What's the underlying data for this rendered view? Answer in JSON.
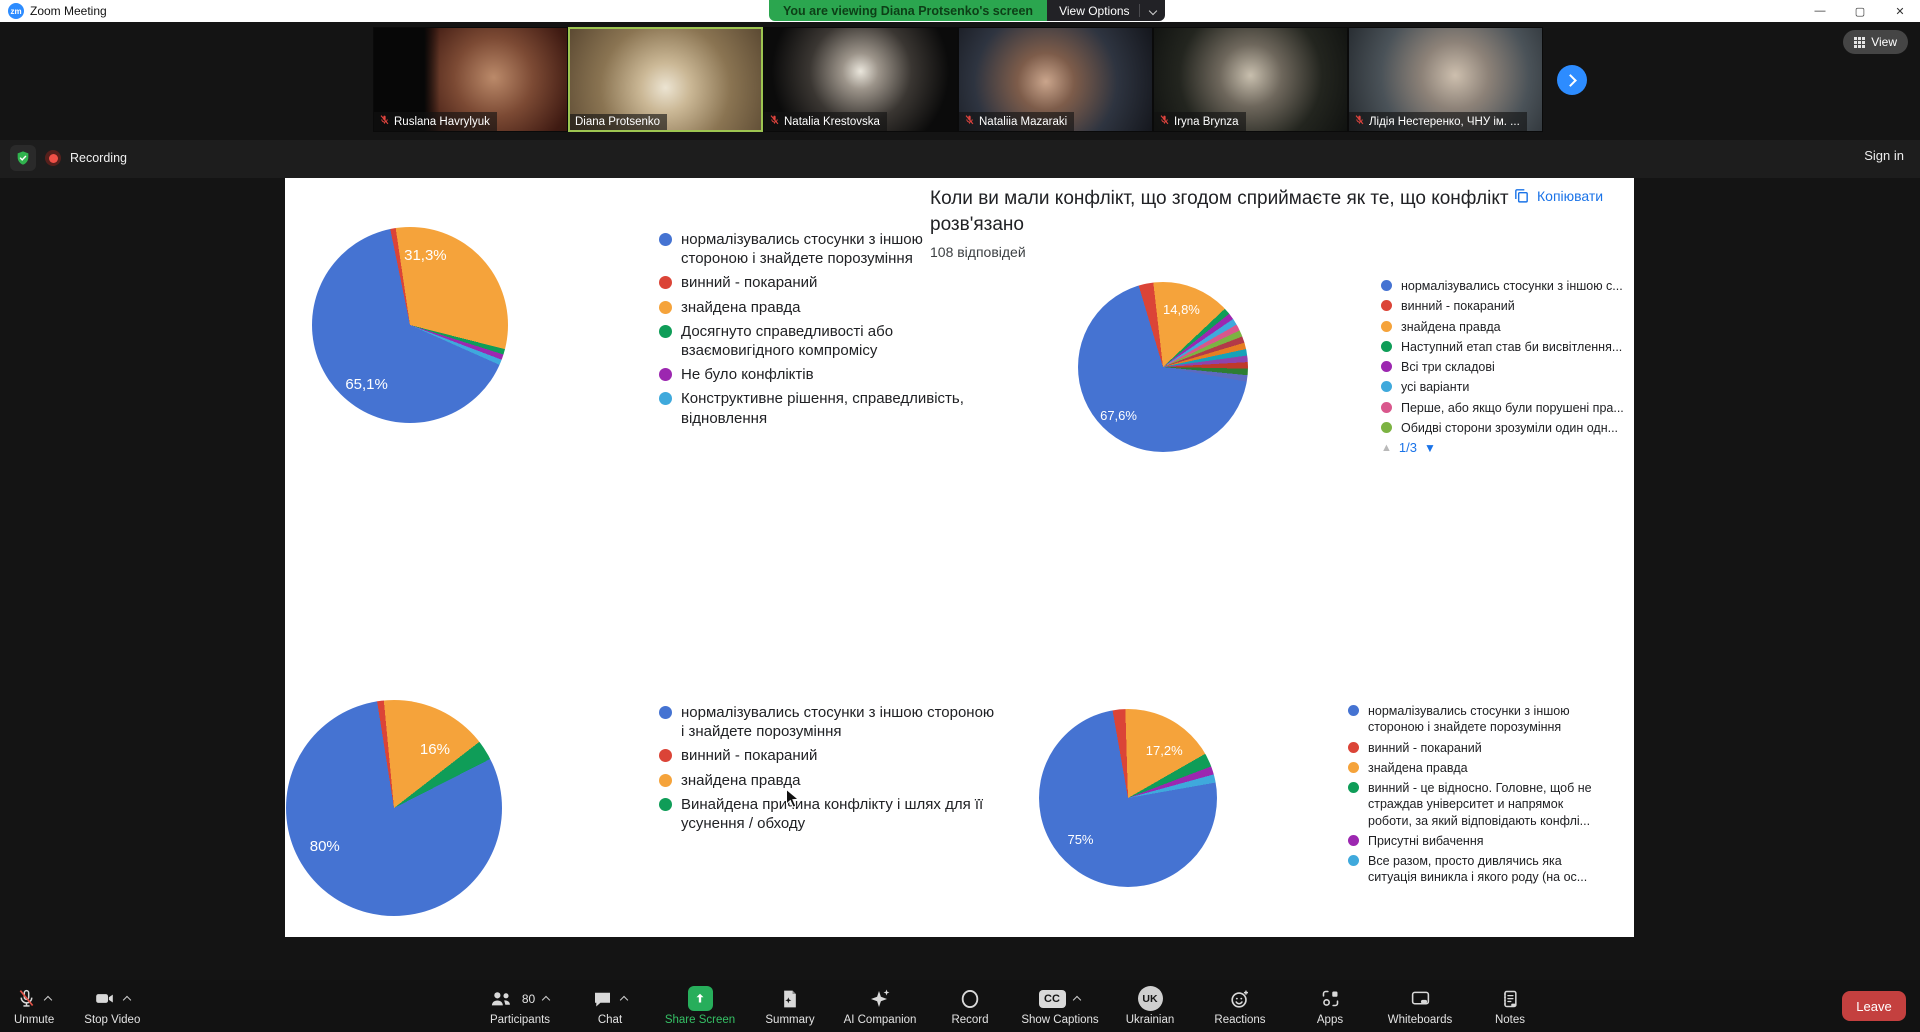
{
  "window": {
    "logo": "zm",
    "title": "Zoom Meeting"
  },
  "icons": {
    "minimize": "—",
    "maximize": "▢",
    "close": "✕",
    "page_up": "▲",
    "page_down": "▼"
  },
  "banner": {
    "viewing_text": "You are viewing Diana Protsenko's screen",
    "view_options_label": "View Options"
  },
  "meeting": {
    "view_button": "View",
    "recording_label": "Recording",
    "sign_in": "Sign in",
    "participants": [
      {
        "name": "Ruslana Havrylyuk",
        "muted": true,
        "active": false
      },
      {
        "name": "Diana Protsenko",
        "muted": false,
        "active": true
      },
      {
        "name": "Natalia Krestovska",
        "muted": true,
        "active": false
      },
      {
        "name": "Nataliia Mazaraki",
        "muted": true,
        "active": false
      },
      {
        "name": "Iryna Brynza",
        "muted": true,
        "active": false
      },
      {
        "name": "Лідія Нестеренко, ЧНУ ім. ...",
        "muted": true,
        "active": false
      }
    ]
  },
  "form": {
    "question": "Коли ви мали конфлікт, що згодом сприймаєте як те, що конфлікт розв'язано",
    "responses_count": "108 відповідей",
    "copy_label": "Копіювати",
    "pagination_current": "1/3"
  },
  "colors": {
    "blue": "#4573D2",
    "red": "#DB4437",
    "orange": "#F5A33B",
    "green": "#0F9D58",
    "purple": "#9C27B0",
    "cyan": "#3FA9DC",
    "pink": "#D9578C",
    "light_green": "#7CB342",
    "link_blue": "#1a73e8",
    "banner_green": "#2BA64F",
    "share_green": "#27AE5B",
    "leave_red": "#C4403F"
  },
  "chart_data": [
    {
      "type": "pie",
      "position": "top-left",
      "title": "Коли ви мали конфлікт, що згодом сприймаєте як те, що конфлікт розв'язано",
      "responses": 108,
      "rotate_deg": 114,
      "percent_labels": [
        {
          "text": "65,1%"
        },
        {
          "text": "31,3%"
        }
      ],
      "slices": [
        {
          "label": "нормалізувались стосунки з іншою стороною і знайдете порозуміння",
          "color": "#4573D2",
          "value": 65.1
        },
        {
          "label": "винний - покараний",
          "color": "#DB4437",
          "value": 0.9
        },
        {
          "label": "знайдена правда",
          "color": "#F5A33B",
          "value": 31.3
        },
        {
          "label": "Досягнуто справедливості або взаємовигідного компромісу",
          "color": "#0F9D58",
          "value": 0.9
        },
        {
          "label": "Не було конфліктів",
          "color": "#9C27B0",
          "value": 0.9
        },
        {
          "label": "Конструктивне рішення, справедливість, відновлення",
          "color": "#3FA9DC",
          "value": 0.9
        }
      ],
      "legend": [
        {
          "color": "#4573D2",
          "label": "нормалізувались стосунки з іншою стороною і знайдете порозуміння"
        },
        {
          "color": "#DB4437",
          "label": "винний - покараний"
        },
        {
          "color": "#F5A33B",
          "label": "знайдена правда"
        },
        {
          "color": "#0F9D58",
          "label": "Досягнуто справедливості або взаємовигідного компромісу"
        },
        {
          "color": "#9C27B0",
          "label": "Не було конфліктів"
        },
        {
          "color": "#3FA9DC",
          "label": "Конструктивне рішення, справедливість, відновлення"
        }
      ]
    },
    {
      "type": "pie",
      "position": "top-right",
      "rotate_deg": 100,
      "percent_labels": [
        {
          "text": "67,6%"
        },
        {
          "text": "14,8%"
        }
      ],
      "slices": [
        {
          "label": "нормалізувались стосунки з іншою с...",
          "color": "#4573D2",
          "value": 67.6
        },
        {
          "label": "винний - покараний",
          "color": "#DB4437",
          "value": 2.8
        },
        {
          "label": "знайдена правда",
          "color": "#F5A33B",
          "value": 14.8
        },
        {
          "label": "",
          "color": "#0F9D58",
          "value": 1.2333
        },
        {
          "label": "",
          "color": "#9C27B0",
          "value": 1.2333
        },
        {
          "label": "",
          "color": "#3FA9DC",
          "value": 1.2333
        },
        {
          "label": "",
          "color": "#D9578C",
          "value": 1.2333
        },
        {
          "label": "",
          "color": "#7CB342",
          "value": 1.2333
        },
        {
          "label": "",
          "color": "#B23A48",
          "value": 1.2333
        },
        {
          "label": "",
          "color": "#E67E22",
          "value": 1.2333
        },
        {
          "label": "",
          "color": "#17A2B8",
          "value": 1.2333
        },
        {
          "label": "",
          "color": "#8E44AD",
          "value": 1.2333
        },
        {
          "label": "",
          "color": "#C0392B",
          "value": 1.2333
        },
        {
          "label": "",
          "color": "#2E7D32",
          "value": 1.2333
        },
        {
          "label": "",
          "color": "#5C6BC0",
          "value": 1.2337
        }
      ],
      "legend": [
        {
          "color": "#4573D2",
          "label": "нормалізувались стосунки з іншою с..."
        },
        {
          "color": "#DB4437",
          "label": "винний - покараний"
        },
        {
          "color": "#F5A33B",
          "label": "знайдена правда"
        },
        {
          "color": "#0F9D58",
          "label": "Наступний етап став би висвітлення..."
        },
        {
          "color": "#9C27B0",
          "label": "Всі три складові"
        },
        {
          "color": "#3FA9DC",
          "label": "усі варіанти"
        },
        {
          "color": "#D9578C",
          "label": "Перше, або якщо були порушені пра..."
        },
        {
          "color": "#7CB342",
          "label": "Обидві сторони зрозуміли один одн..."
        }
      ]
    },
    {
      "type": "pie",
      "position": "bottom-left",
      "rotate_deg": 63,
      "percent_labels": [
        {
          "text": "80%"
        },
        {
          "text": "16%"
        }
      ],
      "slices": [
        {
          "label": "нормалізувались стосунки з іншою стороною і знайдете порозуміння",
          "color": "#4573D2",
          "value": 80
        },
        {
          "label": "винний - покараний",
          "color": "#DB4437",
          "value": 1
        },
        {
          "label": "знайдена правда",
          "color": "#F5A33B",
          "value": 16
        },
        {
          "label": "Винайдена причина конфлікту і шлях для її усунення / обходу",
          "color": "#0F9D58",
          "value": 3
        }
      ],
      "legend": [
        {
          "color": "#4573D2",
          "label": "нормалізувались стосунки з іншою стороною і знайдете порозуміння"
        },
        {
          "color": "#DB4437",
          "label": "винний - покараний"
        },
        {
          "color": "#F5A33B",
          "label": "знайдена правда"
        },
        {
          "color": "#0F9D58",
          "label": "Винайдена причина конфлікту і шлях для її усунення / обходу"
        }
      ]
    },
    {
      "type": "pie",
      "position": "bottom-right",
      "rotate_deg": 80,
      "percent_labels": [
        {
          "text": "75%"
        },
        {
          "text": "17,2%"
        }
      ],
      "slices": [
        {
          "label": "нормалізувались стосунки з іншою стороною і знайдете порозуміння",
          "color": "#4573D2",
          "value": 75
        },
        {
          "label": "винний - покараний",
          "color": "#DB4437",
          "value": 2.3
        },
        {
          "label": "знайдена правда",
          "color": "#F5A33B",
          "value": 17.2
        },
        {
          "label": "винний - це відносно. Головне, щоб не страждав університет и напрямок роботи, за який відповідають конфлі...",
          "color": "#0F9D58",
          "value": 2.5
        },
        {
          "label": "Присутні вибачення",
          "color": "#9C27B0",
          "value": 1.5
        },
        {
          "label": "Все разом, просто дивлячись яка ситуація виникла і якого роду (на ос...",
          "color": "#3FA9DC",
          "value": 1.5
        }
      ],
      "legend": [
        {
          "color": "#4573D2",
          "label": "нормалізувались стосунки з іншою стороною і знайдете порозуміння"
        },
        {
          "color": "#DB4437",
          "label": "винний - покараний"
        },
        {
          "color": "#F5A33B",
          "label": "знайдена правда"
        },
        {
          "color": "#0F9D58",
          "label": "винний - це відносно. Головне, щоб не страждав університет и напрямок роботи, за який відповідають конфлі..."
        },
        {
          "color": "#9C27B0",
          "label": "Присутні вибачення"
        },
        {
          "color": "#3FA9DC",
          "label": "Все разом, просто дивлячись яка ситуація виникла і якого роду (на ос..."
        }
      ]
    }
  ],
  "toolbar": {
    "unmute": {
      "label": "Unmute"
    },
    "stop_video": {
      "label": "Stop Video"
    },
    "participants": {
      "label": "Participants",
      "count": "80"
    },
    "chat": {
      "label": "Chat"
    },
    "share_screen": {
      "label": "Share Screen"
    },
    "summary": {
      "label": "Summary"
    },
    "ai_companion": {
      "label": "AI Companion"
    },
    "record": {
      "label": "Record"
    },
    "show_captions": {
      "label": "Show Captions",
      "badge": "CC"
    },
    "language": {
      "label": "Ukrainian",
      "badge": "UK"
    },
    "reactions": {
      "label": "Reactions"
    },
    "apps": {
      "label": "Apps"
    },
    "whiteboards": {
      "label": "Whiteboards"
    },
    "notes": {
      "label": "Notes"
    },
    "leave": {
      "label": "Leave"
    }
  }
}
